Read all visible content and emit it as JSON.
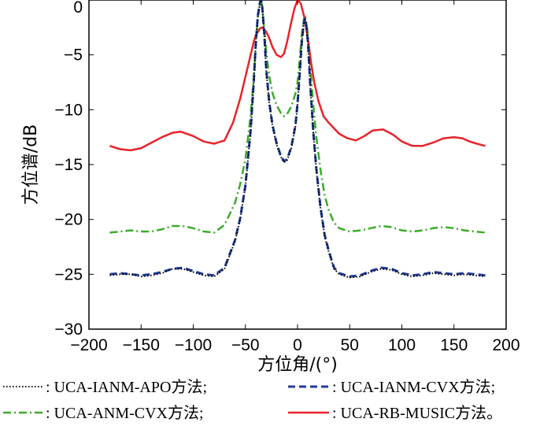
{
  "chart_data": {
    "type": "line",
    "xlabel": "方位角/(°)",
    "ylabel": "方位谱/dB",
    "xlim": [
      -200,
      200
    ],
    "ylim": [
      -30,
      0
    ],
    "xticks": [
      -200,
      -150,
      -100,
      -50,
      0,
      50,
      100,
      150,
      200
    ],
    "yticks": [
      0,
      -5,
      -10,
      -15,
      -20,
      -25,
      -30
    ],
    "ytick_labels": [
      "0",
      "−5",
      "−10",
      "−15",
      "−20",
      "−25",
      "−30"
    ],
    "xtick_labels": [
      "−200",
      "−150",
      "−100",
      "−50",
      "0",
      "50",
      "100",
      "150",
      "200"
    ],
    "grid": false,
    "legend_position": "bottom",
    "series": [
      {
        "name": ": UCA-IANM-APO方法;",
        "color": "#000000",
        "style": "dotted",
        "x": [
          -180,
          -170,
          -160,
          -150,
          -140,
          -130,
          -120,
          -110,
          -100,
          -90,
          -80,
          -70,
          -60,
          -55,
          -50,
          -45,
          -42,
          -40,
          -38,
          -36,
          -35,
          -34,
          -32,
          -30,
          -27,
          -24,
          -20,
          -16,
          -13,
          -10,
          -6,
          -2,
          0,
          2,
          4,
          6,
          7,
          8,
          10,
          12,
          15,
          18,
          22,
          26,
          30,
          35,
          40,
          50,
          60,
          70,
          80,
          90,
          100,
          110,
          120,
          130,
          140,
          150,
          160,
          170,
          180
        ],
        "y": [
          -25.1,
          -25.0,
          -25.0,
          -25.2,
          -25.1,
          -24.9,
          -24.5,
          -24.5,
          -24.8,
          -25.1,
          -25.2,
          -24.5,
          -22.0,
          -20.0,
          -17.0,
          -12.0,
          -7.5,
          -4.0,
          -1.5,
          -0.3,
          0.0,
          -0.5,
          -3.0,
          -6.5,
          -9.5,
          -11.5,
          -13.2,
          -14.3,
          -14.8,
          -14.6,
          -13.5,
          -11.5,
          -9.5,
          -7.0,
          -4.0,
          -2.2,
          -1.8,
          -2.0,
          -4.0,
          -7.5,
          -12.0,
          -15.5,
          -19.0,
          -21.5,
          -23.0,
          -24.5,
          -25.0,
          -25.3,
          -25.2,
          -24.8,
          -24.5,
          -24.6,
          -25.0,
          -25.2,
          -25.1,
          -24.9,
          -25.0,
          -25.1,
          -25.0,
          -25.1,
          -25.2
        ]
      },
      {
        "name": ": UCA-IANM-CVX方法;",
        "color": "#1f3a99",
        "style": "dashed",
        "x": [
          -180,
          -170,
          -160,
          -150,
          -140,
          -130,
          -120,
          -110,
          -100,
          -90,
          -80,
          -70,
          -60,
          -55,
          -50,
          -45,
          -42,
          -40,
          -38,
          -36,
          -35,
          -34,
          -32,
          -30,
          -27,
          -24,
          -20,
          -16,
          -13,
          -10,
          -6,
          -2,
          0,
          2,
          4,
          6,
          7,
          8,
          10,
          12,
          15,
          18,
          22,
          26,
          30,
          35,
          40,
          50,
          60,
          70,
          80,
          90,
          100,
          110,
          120,
          130,
          140,
          150,
          160,
          170,
          180
        ],
        "y": [
          -25.0,
          -24.9,
          -25.0,
          -25.1,
          -25.0,
          -24.8,
          -24.5,
          -24.4,
          -24.7,
          -25.0,
          -25.1,
          -24.4,
          -21.9,
          -19.9,
          -16.9,
          -11.9,
          -7.4,
          -3.9,
          -1.4,
          -0.2,
          0.0,
          -0.4,
          -2.9,
          -6.4,
          -9.4,
          -11.4,
          -13.1,
          -14.2,
          -14.7,
          -14.5,
          -13.4,
          -11.4,
          -9.4,
          -6.9,
          -3.9,
          -2.1,
          -1.7,
          -1.9,
          -3.9,
          -7.4,
          -11.9,
          -15.4,
          -18.9,
          -21.4,
          -22.9,
          -24.4,
          -24.9,
          -25.2,
          -25.1,
          -24.7,
          -24.4,
          -24.5,
          -24.9,
          -25.1,
          -25.0,
          -24.8,
          -24.9,
          -25.0,
          -24.9,
          -25.0,
          -25.1
        ]
      },
      {
        "name": ": UCA-ANM-CVX方法;",
        "color": "#3aab28",
        "style": "dashdot",
        "x": [
          -180,
          -170,
          -160,
          -150,
          -140,
          -130,
          -120,
          -110,
          -100,
          -90,
          -80,
          -70,
          -60,
          -55,
          -50,
          -45,
          -42,
          -40,
          -38,
          -36,
          -35,
          -34,
          -32,
          -30,
          -27,
          -24,
          -20,
          -16,
          -13,
          -10,
          -6,
          -2,
          0,
          2,
          4,
          6,
          7,
          8,
          10,
          12,
          15,
          18,
          22,
          26,
          30,
          35,
          40,
          50,
          60,
          70,
          80,
          90,
          100,
          110,
          120,
          130,
          140,
          150,
          160,
          170,
          180
        ],
        "y": [
          -21.2,
          -21.1,
          -21.0,
          -21.1,
          -21.1,
          -20.9,
          -20.6,
          -20.6,
          -20.8,
          -21.1,
          -21.2,
          -20.5,
          -18.5,
          -16.8,
          -14.5,
          -10.5,
          -7.0,
          -4.0,
          -1.5,
          -0.3,
          0.0,
          -0.5,
          -2.5,
          -4.8,
          -7.0,
          -8.5,
          -9.6,
          -10.3,
          -10.6,
          -10.4,
          -9.7,
          -8.5,
          -7.5,
          -5.5,
          -3.2,
          -1.8,
          -1.5,
          -1.7,
          -3.2,
          -5.8,
          -9.5,
          -12.5,
          -15.5,
          -17.8,
          -19.2,
          -20.3,
          -20.8,
          -21.1,
          -21.0,
          -20.8,
          -20.6,
          -20.7,
          -21.0,
          -21.1,
          -21.0,
          -20.8,
          -20.7,
          -20.8,
          -21.0,
          -21.1,
          -21.2
        ]
      },
      {
        "name": ": UCA-RB-MUSIC方法。",
        "color": "#e8232a",
        "style": "solid",
        "x": [
          -180,
          -170,
          -160,
          -150,
          -140,
          -130,
          -120,
          -112,
          -100,
          -90,
          -80,
          -70,
          -62,
          -55,
          -50,
          -45,
          -42,
          -40,
          -36,
          -34,
          -30,
          -27,
          -24,
          -20,
          -16,
          -13,
          -10,
          -6,
          -3,
          0,
          3,
          5,
          7,
          10,
          13,
          16,
          20,
          25,
          30,
          35,
          40,
          48,
          56,
          64,
          72,
          82,
          92,
          100,
          110,
          120,
          130,
          140,
          150,
          158,
          165,
          172,
          180
        ],
        "y": [
          -13.3,
          -13.6,
          -13.7,
          -13.5,
          -13.0,
          -12.5,
          -12.1,
          -12.0,
          -12.4,
          -12.9,
          -13.1,
          -12.8,
          -11.2,
          -9.0,
          -7.0,
          -5.0,
          -3.8,
          -3.2,
          -2.6,
          -2.5,
          -2.9,
          -3.5,
          -4.3,
          -5.0,
          -5.2,
          -4.9,
          -3.8,
          -2.0,
          -0.8,
          0.0,
          -0.3,
          -1.0,
          -1.8,
          -3.6,
          -5.7,
          -7.5,
          -9.2,
          -10.6,
          -11.2,
          -11.7,
          -12.2,
          -12.6,
          -12.8,
          -12.4,
          -11.9,
          -11.8,
          -12.3,
          -12.9,
          -13.3,
          -13.3,
          -13.0,
          -12.6,
          -12.5,
          -12.6,
          -12.9,
          -13.1,
          -13.3
        ]
      }
    ]
  }
}
